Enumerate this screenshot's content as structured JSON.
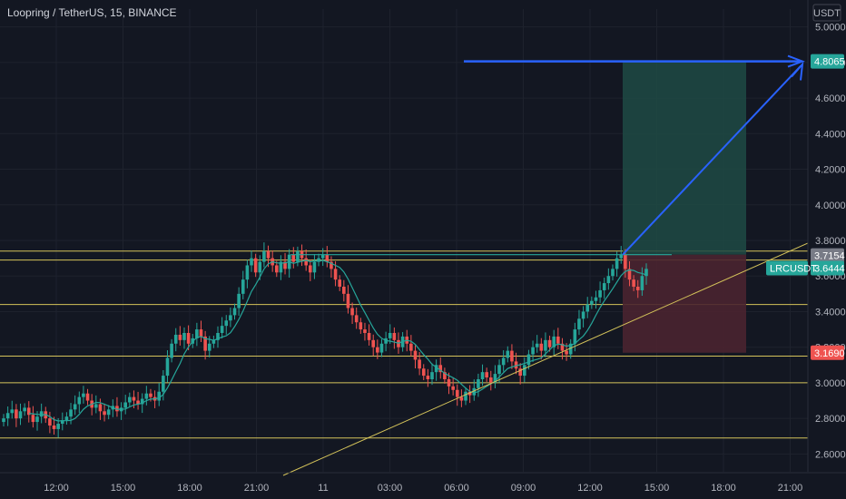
{
  "header": {
    "title": "Loopring / TetherUS, 15, BINANCE"
  },
  "currency_label": "USDT",
  "colors": {
    "background": "#131722",
    "grid": "#1e222d",
    "up": "#26a69a",
    "down": "#ef5350",
    "horizontal_lines": "#d4c35a",
    "trend_arrow": "#2962ff",
    "target_zone": "#1f4a44",
    "stop_zone": "#4a2430",
    "ma_line": "#26a69a"
  },
  "chart_data": {
    "type": "candlestick",
    "symbol": "LRCUSDT",
    "ylim": [
      2.5,
      5.1
    ],
    "y_ticks": [
      "5.0000",
      "4.8000",
      "4.6000",
      "4.4000",
      "4.2000",
      "4.0000",
      "3.8000",
      "3.6000",
      "3.4000",
      "3.2000",
      "3.0000",
      "2.8000",
      "2.6000"
    ],
    "x_ticks": [
      "12:00",
      "15:00",
      "18:00",
      "21:00",
      "11",
      "03:00",
      "06:00",
      "09:00",
      "12:00",
      "15:00",
      "18:00",
      "21:00"
    ],
    "price_labels": [
      {
        "text": "4.8065",
        "value": 4.8065,
        "color": "#26a69a"
      },
      {
        "text": "3.7154",
        "value": 3.7154,
        "color": "#787b86"
      },
      {
        "text": "3.6444",
        "value": 3.6444,
        "color": "#26a69a",
        "name": "LRCUSDT"
      },
      {
        "text": "3.1690",
        "value": 3.169,
        "color": "#ef5350"
      }
    ],
    "horizontal_levels": [
      3.74,
      3.69,
      3.44,
      3.15,
      3.0,
      2.69
    ],
    "position": {
      "entry": 3.72,
      "target": 4.8065,
      "stop": 3.169
    },
    "closes": [
      2.8,
      2.83,
      2.85,
      2.8,
      2.84,
      2.86,
      2.82,
      2.78,
      2.81,
      2.84,
      2.8,
      2.76,
      2.74,
      2.77,
      2.79,
      2.81,
      2.85,
      2.88,
      2.92,
      2.94,
      2.9,
      2.86,
      2.88,
      2.84,
      2.82,
      2.85,
      2.87,
      2.84,
      2.86,
      2.89,
      2.92,
      2.9,
      2.88,
      2.91,
      2.94,
      2.92,
      2.9,
      2.95,
      3.04,
      3.14,
      3.22,
      3.27,
      3.24,
      3.28,
      3.22,
      3.25,
      3.3,
      3.26,
      3.18,
      3.22,
      3.24,
      3.28,
      3.32,
      3.35,
      3.38,
      3.42,
      3.5,
      3.58,
      3.66,
      3.7,
      3.62,
      3.68,
      3.74,
      3.7,
      3.66,
      3.62,
      3.68,
      3.64,
      3.72,
      3.68,
      3.74,
      3.7,
      3.66,
      3.62,
      3.68,
      3.7,
      3.72,
      3.68,
      3.64,
      3.58,
      3.54,
      3.5,
      3.42,
      3.38,
      3.34,
      3.3,
      3.28,
      3.24,
      3.2,
      3.17,
      3.22,
      3.25,
      3.28,
      3.24,
      3.2,
      3.26,
      3.22,
      3.18,
      3.13,
      3.08,
      3.04,
      3.02,
      3.06,
      3.1,
      3.06,
      3.02,
      2.98,
      2.96,
      2.92,
      2.9,
      2.95,
      2.93,
      2.97,
      3.02,
      3.06,
      3.03,
      3.0,
      3.05,
      3.1,
      3.14,
      3.18,
      3.12,
      3.08,
      3.04,
      3.1,
      3.16,
      3.2,
      3.22,
      3.18,
      3.24,
      3.2,
      3.26,
      3.22,
      3.18,
      3.16,
      3.22,
      3.3,
      3.36,
      3.4,
      3.44,
      3.46,
      3.48,
      3.52,
      3.56,
      3.6,
      3.64,
      3.7,
      3.72,
      3.64,
      3.58,
      3.54,
      3.52,
      3.6,
      3.64
    ]
  }
}
